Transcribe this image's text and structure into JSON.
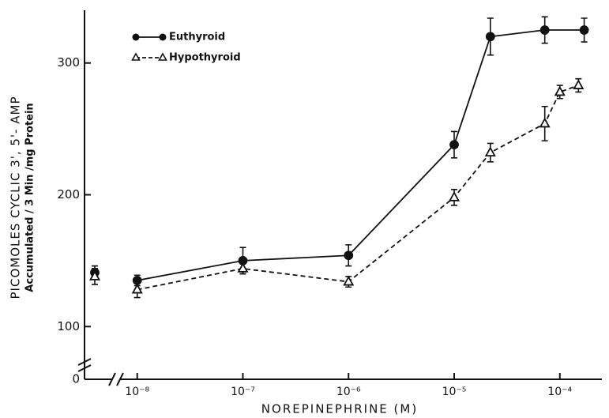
{
  "chart_data": {
    "type": "line",
    "x_label": "NOREPINEPHRINE (M)",
    "y_label": [
      "PICOMOLES CYCLIC 3', 5'- AMP",
      "Accumulated / 3 Min /mg Protein"
    ],
    "xscale": "log",
    "x_break": true,
    "y_break": 60,
    "xlim": [
      7e-09,
      0.00025
    ],
    "ylim": [
      0,
      340
    ],
    "xticks": [
      {
        "value": 1e-08,
        "label": "10⁻⁸"
      },
      {
        "value": 1e-07,
        "label": "10⁻⁷"
      },
      {
        "value": 1e-06,
        "label": "10⁻⁶"
      },
      {
        "value": 1e-05,
        "label": "10⁻⁵"
      },
      {
        "value": 0.0001,
        "label": "10⁻⁴"
      }
    ],
    "yticks": [
      0,
      100,
      200,
      300
    ],
    "legend": "upper left",
    "series": [
      {
        "name": "Euthyroid",
        "color": "#111111",
        "marker": "circle",
        "dash": false,
        "x": [
          null,
          1e-08,
          1e-07,
          1e-06,
          1e-05,
          2.2e-05,
          7.2e-05,
          0.00017
        ],
        "values": [
          141,
          135,
          150,
          154,
          238,
          320,
          325,
          325
        ],
        "errors": [
          5,
          4,
          10,
          8,
          10,
          14,
          10,
          9
        ]
      },
      {
        "name": "Hypothyroid",
        "color": "#111111",
        "marker": "triangle",
        "dash": true,
        "x": [
          null,
          1e-08,
          1e-07,
          1e-06,
          1e-05,
          2.2e-05,
          7.2e-05,
          0.0001,
          0.00015
        ],
        "values": [
          138,
          128,
          144,
          134,
          198,
          232,
          254,
          278,
          283
        ],
        "errors": [
          6,
          6,
          4,
          4,
          6,
          7,
          13,
          5,
          5
        ]
      }
    ]
  }
}
